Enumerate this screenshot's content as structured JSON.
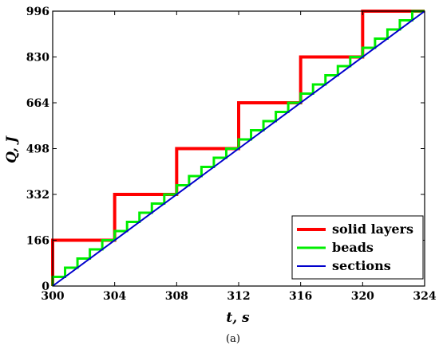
{
  "chart_data": {
    "type": "line",
    "xlabel": "t, s",
    "ylabel": "Q, J",
    "caption": "(a)",
    "xlim": [
      300,
      324
    ],
    "ylim": [
      0,
      996
    ],
    "xticks": [
      300,
      304,
      308,
      312,
      316,
      320,
      324
    ],
    "yticks": [
      0,
      166,
      332,
      498,
      664,
      830,
      996
    ],
    "grid": false,
    "legend_position": "bottom-right",
    "series": [
      {
        "name": "solid layers",
        "color": "#ff0000",
        "style": "step",
        "x": [
          300,
          300,
          304,
          304,
          308,
          308,
          312,
          312,
          316,
          316,
          320,
          320,
          324
        ],
        "y": [
          0,
          166,
          166,
          332,
          332,
          498,
          498,
          664,
          664,
          830,
          830,
          996,
          996
        ]
      },
      {
        "name": "beads",
        "color": "#00ee00",
        "style": "step",
        "step_x": 0.8,
        "step_y": 33.2,
        "x_range": [
          300,
          324
        ]
      },
      {
        "name": "sections",
        "color": "#0000cc",
        "style": "line",
        "x": [
          300,
          324
        ],
        "y": [
          0,
          996
        ]
      }
    ]
  }
}
